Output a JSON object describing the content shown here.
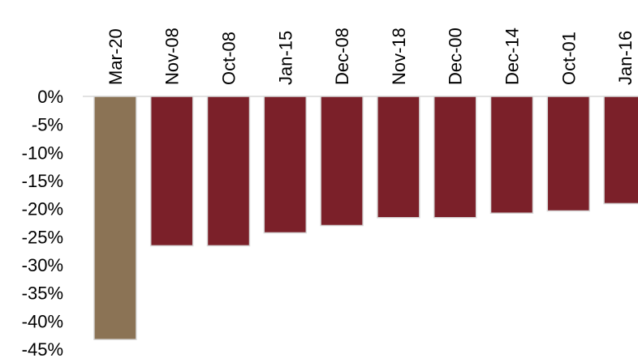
{
  "chart_data": {
    "type": "bar",
    "title": "",
    "xlabel": "",
    "ylabel": "",
    "categories": [
      "Mar-20",
      "Nov-08",
      "Oct-08",
      "Jan-15",
      "Dec-08",
      "Nov-18",
      "Dec-00",
      "Dec-14",
      "Oct-01",
      "Jan-16"
    ],
    "values": [
      -43.3,
      -26.6,
      -26.6,
      -24.3,
      -23.0,
      -21.6,
      -21.6,
      -20.8,
      -20.4,
      -19.1
    ],
    "ylim": [
      -45,
      0
    ],
    "yticks": [
      0,
      -5,
      -10,
      -15,
      -20,
      -25,
      -30,
      -35,
      -40,
      -45
    ],
    "ytick_labels": [
      "0%",
      "-5%",
      "-10%",
      "-15%",
      "-20%",
      "-25%",
      "-30%",
      "-35%",
      "-40%",
      "-45%"
    ],
    "grid": false,
    "legend": "none",
    "colors": {
      "highlight": "#8B7355",
      "default": "#7B2029",
      "bar_outline": "#D9D9D9"
    },
    "highlight_index": 0
  }
}
